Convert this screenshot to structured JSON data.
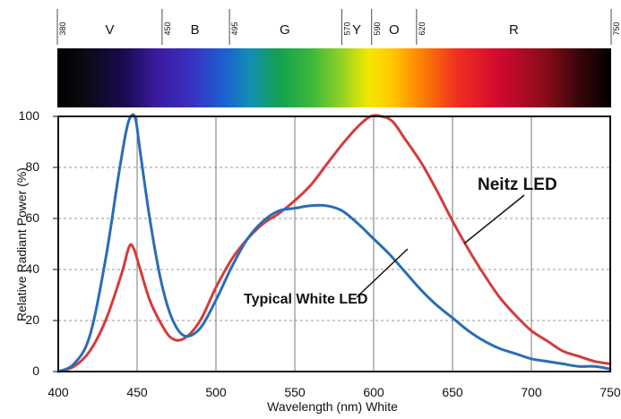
{
  "colors": {
    "neitz": "#d43c3c",
    "typical": "#2a6db5",
    "grid": "#555555",
    "frame": "#111111"
  },
  "spectrum_bar": {
    "band_letters": [
      {
        "label": "V",
        "center_nm": 415
      },
      {
        "label": "B",
        "center_nm": 472
      },
      {
        "label": "G",
        "center_nm": 532
      },
      {
        "label": "Y",
        "center_nm": 580
      },
      {
        "label": "O",
        "center_nm": 605
      },
      {
        "label": "R",
        "center_nm": 685
      }
    ],
    "boundaries": [
      "380",
      "450",
      "495",
      "570",
      "590",
      "620",
      "750"
    ]
  },
  "chart_data": {
    "type": "line",
    "title": "",
    "xlabel": "Wavelength (nm) White",
    "ylabel": "Relative Radiant Power (%)",
    "xlim": [
      400,
      750
    ],
    "ylim": [
      0,
      100
    ],
    "x_ticks": [
      "400",
      "450",
      "500",
      "550",
      "600",
      "650",
      "700",
      "750"
    ],
    "y_ticks": [
      "0",
      "20",
      "40",
      "60",
      "80",
      "100"
    ],
    "grid": "vertical",
    "series": [
      {
        "name": "Neitz LED",
        "color": "#d43c3c",
        "points": [
          [
            400,
            0
          ],
          [
            410,
            2
          ],
          [
            420,
            8
          ],
          [
            430,
            20
          ],
          [
            440,
            38
          ],
          [
            445,
            49
          ],
          [
            448,
            48
          ],
          [
            452,
            40
          ],
          [
            458,
            28
          ],
          [
            465,
            19
          ],
          [
            472,
            13
          ],
          [
            480,
            13
          ],
          [
            490,
            20
          ],
          [
            500,
            33
          ],
          [
            510,
            44
          ],
          [
            520,
            52
          ],
          [
            530,
            58
          ],
          [
            540,
            62
          ],
          [
            550,
            67
          ],
          [
            560,
            73
          ],
          [
            570,
            81
          ],
          [
            580,
            89
          ],
          [
            590,
            96
          ],
          [
            598,
            100
          ],
          [
            605,
            100
          ],
          [
            612,
            98
          ],
          [
            620,
            91
          ],
          [
            630,
            82
          ],
          [
            640,
            71
          ],
          [
            650,
            59
          ],
          [
            660,
            48
          ],
          [
            670,
            38
          ],
          [
            680,
            29
          ],
          [
            690,
            22
          ],
          [
            700,
            16
          ],
          [
            710,
            12
          ],
          [
            720,
            8
          ],
          [
            730,
            6
          ],
          [
            740,
            4
          ],
          [
            750,
            3
          ]
        ]
      },
      {
        "name": "Typical White LED",
        "color": "#2a6db5",
        "points": [
          [
            400,
            0
          ],
          [
            410,
            3
          ],
          [
            420,
            14
          ],
          [
            430,
            44
          ],
          [
            438,
            76
          ],
          [
            443,
            94
          ],
          [
            446,
            100
          ],
          [
            449,
            99
          ],
          [
            452,
            86
          ],
          [
            458,
            60
          ],
          [
            465,
            36
          ],
          [
            472,
            21
          ],
          [
            480,
            14
          ],
          [
            490,
            17
          ],
          [
            500,
            28
          ],
          [
            510,
            41
          ],
          [
            520,
            52
          ],
          [
            530,
            59
          ],
          [
            540,
            63
          ],
          [
            550,
            64
          ],
          [
            560,
            65
          ],
          [
            570,
            65
          ],
          [
            580,
            63
          ],
          [
            590,
            58
          ],
          [
            600,
            52
          ],
          [
            610,
            46
          ],
          [
            620,
            39
          ],
          [
            630,
            32
          ],
          [
            640,
            26
          ],
          [
            650,
            21
          ],
          [
            660,
            16
          ],
          [
            670,
            12
          ],
          [
            680,
            9
          ],
          [
            690,
            7
          ],
          [
            700,
            5
          ],
          [
            710,
            4
          ],
          [
            720,
            3
          ],
          [
            730,
            2
          ],
          [
            740,
            2
          ],
          [
            750,
            1
          ]
        ]
      }
    ],
    "annotations": [
      {
        "text": "Neitz LED",
        "series": "Neitz LED",
        "anchor_x": 648,
        "anchor_y": 60
      },
      {
        "text": "Typical White LED",
        "series": "Typical White LED",
        "anchor_x": 610,
        "anchor_y": 48
      }
    ]
  }
}
